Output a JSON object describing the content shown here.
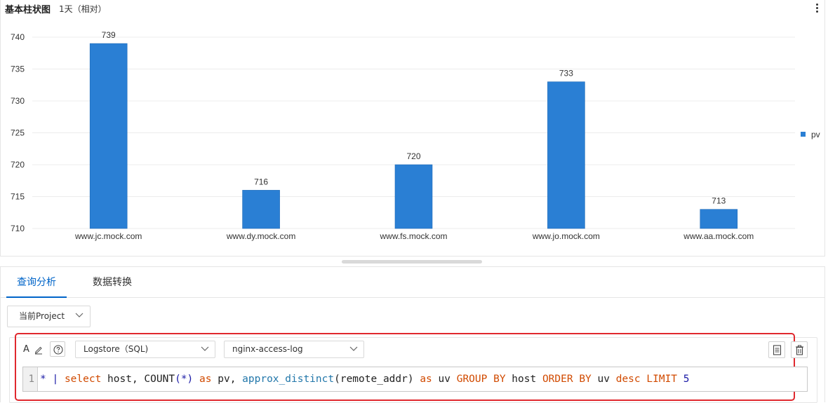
{
  "panel": {
    "title": "基本柱状图",
    "time_range": "1天（相对）",
    "more_icon": "more-vertical-icon"
  },
  "chart_data": {
    "type": "bar",
    "categories": [
      "www.jc.mock.com",
      "www.dy.mock.com",
      "www.fs.mock.com",
      "www.jo.mock.com",
      "www.aa.mock.com"
    ],
    "series": [
      {
        "name": "pv",
        "values": [
          739,
          716,
          720,
          733,
          713
        ],
        "color": "#2a7fd4"
      }
    ],
    "yticks": [
      710,
      715,
      720,
      725,
      730,
      735,
      740
    ],
    "ylim": [
      710,
      743
    ],
    "grid": true,
    "legend": "right"
  },
  "tabs": [
    {
      "label": "查询分析",
      "active": true
    },
    {
      "label": "数据转换",
      "active": false
    }
  ],
  "project_select": {
    "value": "当前Project"
  },
  "toolbar": {
    "font_label": "A",
    "logstore_type": "Logstore（SQL)",
    "logstore_name": "nginx-access-log"
  },
  "editor": {
    "line_number": "1",
    "tokens": [
      {
        "t": "* ",
        "c": "op"
      },
      {
        "t": "| ",
        "c": "op"
      },
      {
        "t": "select",
        "c": "kw"
      },
      {
        "t": " host, COUNT",
        "c": "plain"
      },
      {
        "t": "(*)",
        "c": "op"
      },
      {
        "t": " ",
        "c": "plain"
      },
      {
        "t": "as",
        "c": "kw"
      },
      {
        "t": " pv, ",
        "c": "plain"
      },
      {
        "t": "approx_distinct",
        "c": "fn"
      },
      {
        "t": "(remote_addr) ",
        "c": "plain"
      },
      {
        "t": "as",
        "c": "kw"
      },
      {
        "t": " uv ",
        "c": "plain"
      },
      {
        "t": "GROUP BY",
        "c": "kw"
      },
      {
        "t": " host ",
        "c": "plain"
      },
      {
        "t": "ORDER BY",
        "c": "kw"
      },
      {
        "t": " uv ",
        "c": "plain"
      },
      {
        "t": "desc",
        "c": "kw"
      },
      {
        "t": " ",
        "c": "plain"
      },
      {
        "t": "LIMIT",
        "c": "kw"
      },
      {
        "t": " ",
        "c": "plain"
      },
      {
        "t": "5",
        "c": "num"
      }
    ]
  },
  "colors": {
    "accent": "#0064c8",
    "bar": "#2a7fd4",
    "highlight": "#e0282e"
  }
}
